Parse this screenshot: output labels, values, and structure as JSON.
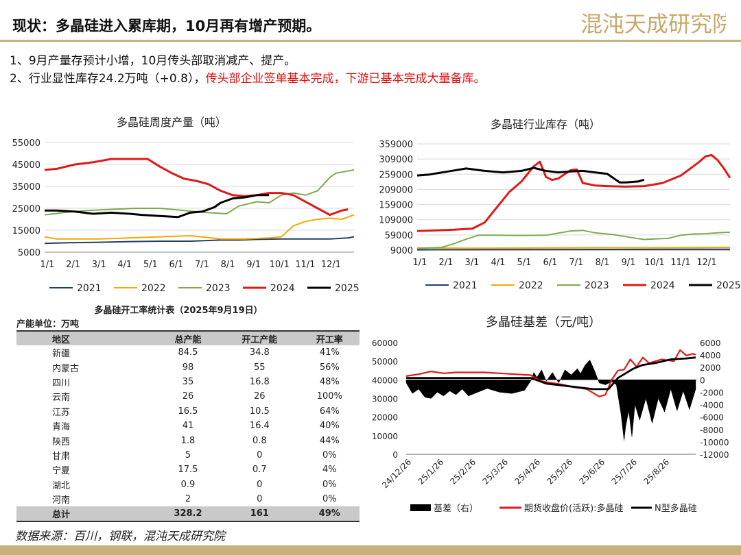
{
  "header": {
    "title": "现状：多晶硅进入累库期，10月再有增产预期。",
    "logo_text": "混沌天成研究院"
  },
  "bullets": [
    {
      "text": "1、9月产量存预计小增，10月传头部取消减产、提产。",
      "highlight": ""
    },
    {
      "text": "2、行业显性库存24.2万吨（+0.8），",
      "highlight": "传头部企业签单基本完成，下游已基本完成大量备库。"
    }
  ],
  "footer": {
    "source": "数据来源：百川，钢联，混沌天成研究院"
  },
  "colors": {
    "y2021": "#1f3f6e",
    "y2022": "#f5a700",
    "y2023": "#7aab4c",
    "y2024": "#e01818",
    "y2025": "#000000",
    "accent": "#c8b07a"
  },
  "table": {
    "title": "多晶硅开工率统计表（2025年9月19日）",
    "unit": "产能单位：万吨",
    "headers": [
      "地区",
      "总产能",
      "开工产能",
      "开工率"
    ],
    "rows": [
      [
        "新疆",
        "84.5",
        "34.8",
        "41%"
      ],
      [
        "内蒙古",
        "98",
        "55",
        "56%"
      ],
      [
        "四川",
        "35",
        "16.8",
        "48%"
      ],
      [
        "云南",
        "26",
        "26",
        "100%"
      ],
      [
        "江苏",
        "16.5",
        "10.5",
        "64%"
      ],
      [
        "青海",
        "41",
        "16.4",
        "40%"
      ],
      [
        "陕西",
        "1.8",
        "0.8",
        "44%"
      ],
      [
        "甘肃",
        "5",
        "0",
        "0%"
      ],
      [
        "宁夏",
        "17.5",
        "0.7",
        "4%"
      ],
      [
        "湖北",
        "0.9",
        "0",
        "0%"
      ],
      [
        "河南",
        "2",
        "0",
        "0%"
      ]
    ],
    "total": [
      "总计",
      "328.2",
      "161",
      "49%"
    ]
  },
  "chart_data": [
    {
      "type": "line",
      "title": "多晶硅周度产量（吨）",
      "x_ticks": [
        "1/1",
        "2/1",
        "3/1",
        "4/1",
        "5/1",
        "6/1",
        "7/1",
        "8/1",
        "9/1",
        "10/1",
        "11/1",
        "12/1"
      ],
      "ylim": [
        5000,
        55000
      ],
      "y_ticks": [
        5000,
        15000,
        25000,
        35000,
        45000,
        55000
      ],
      "x_range": [
        1,
        52
      ],
      "legend": "bottom",
      "series": [
        {
          "name": "2021",
          "color": "#1f3f6e",
          "x": [
            1,
            5,
            10,
            15,
            20,
            25,
            30,
            33,
            36,
            40,
            44,
            48,
            51,
            52
          ],
          "y": [
            9000,
            9300,
            9500,
            9800,
            10000,
            10000,
            10500,
            10500,
            10800,
            11000,
            11000,
            11000,
            11500,
            12000
          ]
        },
        {
          "name": "2022",
          "color": "#f5a700",
          "x": [
            1,
            3,
            6,
            10,
            15,
            20,
            25,
            30,
            34,
            38,
            40,
            42,
            44,
            46,
            48,
            50,
            52
          ],
          "y": [
            12000,
            11000,
            11000,
            11000,
            11500,
            12000,
            12500,
            11000,
            11000,
            11500,
            12000,
            17000,
            19000,
            20000,
            20500,
            20000,
            22000
          ]
        },
        {
          "name": "2023",
          "color": "#7aab4c",
          "x": [
            1,
            4,
            8,
            12,
            16,
            20,
            24,
            28,
            31,
            33,
            36,
            38,
            40,
            42,
            44,
            46,
            48,
            49,
            50,
            52
          ],
          "y": [
            22000,
            23000,
            24000,
            24500,
            25000,
            25000,
            24000,
            23000,
            22500,
            26000,
            28000,
            27500,
            31000,
            32000,
            31000,
            33000,
            39000,
            41000,
            41500,
            42500
          ]
        },
        {
          "name": "2024",
          "color": "#e01818",
          "x": [
            1,
            3,
            6,
            9,
            12,
            15,
            18,
            20,
            22,
            24,
            26,
            28,
            30,
            32,
            34,
            36,
            38,
            40,
            42,
            44,
            46,
            48,
            50,
            51
          ],
          "y": [
            42500,
            43000,
            45000,
            46000,
            47500,
            47500,
            47500,
            44000,
            41000,
            38500,
            37500,
            36000,
            33000,
            31000,
            30500,
            31000,
            32000,
            32000,
            31000,
            28000,
            25000,
            22000,
            24000,
            24500
          ]
        },
        {
          "name": "2025",
          "color": "#000000",
          "x": [
            1,
            3,
            6,
            9,
            12,
            15,
            17,
            20,
            23,
            25,
            27,
            29,
            30,
            32,
            34,
            36,
            38
          ],
          "y": [
            24000,
            24000,
            23500,
            22500,
            23000,
            22500,
            22000,
            21500,
            21000,
            23000,
            23500,
            25500,
            27500,
            29500,
            30000,
            31000,
            31000
          ]
        }
      ]
    },
    {
      "type": "line",
      "title": "多晶硅行业库存（吨）",
      "x_ticks": [
        "1/1",
        "2/1",
        "3/1",
        "4/1",
        "5/1",
        "6/1",
        "7/1",
        "8/1",
        "9/1",
        "10/1",
        "11/1",
        "12/1"
      ],
      "ylim": [
        9000,
        359000
      ],
      "y_ticks": [
        9000,
        59000,
        109000,
        159000,
        209000,
        259000,
        309000,
        359000
      ],
      "x_range": [
        1,
        52
      ],
      "legend": "bottom",
      "series": [
        {
          "name": "2021",
          "color": "#1f3f6e",
          "x": [
            1,
            52
          ],
          "y": [
            10000,
            12000
          ]
        },
        {
          "name": "2022",
          "color": "#f5a700",
          "x": [
            1,
            10,
            20,
            30,
            40,
            52
          ],
          "y": [
            16000,
            15000,
            16000,
            17000,
            17000,
            18000
          ]
        },
        {
          "name": "2023",
          "color": "#7aab4c",
          "x": [
            1,
            5,
            7,
            9,
            11,
            14,
            18,
            22,
            26,
            28,
            30,
            33,
            36,
            38,
            40,
            42,
            44,
            46,
            48,
            50,
            52
          ],
          "y": [
            14000,
            18000,
            30000,
            45000,
            58000,
            58000,
            57000,
            58000,
            72000,
            74000,
            66000,
            60000,
            50000,
            44000,
            46000,
            48000,
            58000,
            62000,
            63000,
            66000,
            68000
          ]
        },
        {
          "name": "2024",
          "color": "#e01818",
          "x": [
            1,
            4,
            7,
            10,
            12,
            14,
            16,
            18,
            20,
            21,
            22,
            23,
            24,
            26,
            27,
            28,
            30,
            32,
            35,
            38,
            41,
            44,
            46,
            47,
            48,
            49,
            50,
            51,
            52
          ],
          "y": [
            72000,
            74000,
            76000,
            80000,
            100000,
            150000,
            200000,
            235000,
            285000,
            300000,
            250000,
            240000,
            245000,
            272000,
            275000,
            230000,
            222000,
            220000,
            218000,
            220000,
            230000,
            255000,
            285000,
            300000,
            318000,
            322000,
            305000,
            278000,
            247000
          ]
        },
        {
          "name": "2025",
          "color": "#000000",
          "x": [
            1,
            3,
            6,
            9,
            12,
            15,
            18,
            20,
            22,
            24,
            26,
            28,
            30,
            32,
            34,
            35,
            37,
            38
          ],
          "y": [
            255000,
            258000,
            268000,
            278000,
            270000,
            265000,
            270000,
            280000,
            270000,
            265000,
            268000,
            270000,
            265000,
            260000,
            232000,
            232000,
            235000,
            241000
          ]
        }
      ]
    },
    {
      "type": "line",
      "title": "多晶硅基差（元/吨）",
      "x_ticks": [
        "24/12/26",
        "25/1/26",
        "25/2/26",
        "25/3/26",
        "25/4/26",
        "25/5/26",
        "25/6/26",
        "25/7/26",
        "25/8/26"
      ],
      "x_range": [
        0,
        9.3
      ],
      "ylim_left": [
        0,
        60000
      ],
      "y_ticks_left": [
        0,
        10000,
        20000,
        30000,
        40000,
        50000,
        60000
      ],
      "ylim_right": [
        -12000,
        6000
      ],
      "y_ticks_right": [
        -12000,
        -10000,
        -8000,
        -6000,
        -4000,
        -2000,
        0,
        2000,
        4000,
        6000
      ],
      "legend": "bottom",
      "series": [
        {
          "name": "基差（右）",
          "type": "area",
          "axis": "right",
          "color": "#000000",
          "x": [
            0,
            0.2,
            0.4,
            0.6,
            0.8,
            1.0,
            1.2,
            1.4,
            1.6,
            1.8,
            2.0,
            2.3,
            2.6,
            3.0,
            3.4,
            3.8,
            4.0,
            4.1,
            4.2,
            4.35,
            4.5,
            4.7,
            4.9,
            5.1,
            5.3,
            5.5,
            5.6,
            5.75,
            5.9,
            6.05,
            6.2,
            6.4,
            6.6,
            6.75,
            6.9,
            7.0,
            7.05,
            7.15,
            7.25,
            7.35,
            7.5,
            7.7,
            7.9,
            8.1,
            8.3,
            8.5,
            8.7,
            8.9,
            9.1,
            9.3
          ],
          "y": [
            -500,
            -2200,
            -1500,
            -2800,
            -3000,
            -2000,
            -2600,
            -1800,
            -2400,
            -1500,
            -2600,
            -2000,
            -1400,
            -2000,
            -2200,
            -1700,
            -200,
            1200,
            400,
            1600,
            -200,
            1200,
            -500,
            1600,
            800,
            1800,
            1000,
            2400,
            3200,
            1500,
            -500,
            -800,
            -300,
            -800,
            -5500,
            -9800,
            -7500,
            -5000,
            -9200,
            -4000,
            -6500,
            -3000,
            -7000,
            -3000,
            -5200,
            -1500,
            -5000,
            -1800,
            -4800,
            -1500
          ]
        },
        {
          "name": "期货收盘价(活跃):多晶硅",
          "type": "line",
          "axis": "left",
          "color": "#e01818",
          "x": [
            0,
            0.4,
            0.8,
            1.2,
            1.6,
            2.0,
            2.5,
            3.0,
            3.5,
            4.0,
            4.3,
            4.6,
            5.0,
            5.4,
            5.8,
            6.0,
            6.2,
            6.4,
            6.6,
            6.8,
            7.0,
            7.2,
            7.4,
            7.6,
            7.8,
            8.0,
            8.2,
            8.4,
            8.6,
            8.8,
            9.0,
            9.2,
            9.3
          ],
          "y": [
            42000,
            43000,
            44500,
            43500,
            44000,
            44000,
            44000,
            43500,
            43000,
            42500,
            39500,
            38500,
            37500,
            36000,
            35000,
            33000,
            31000,
            32000,
            40000,
            45000,
            45500,
            51000,
            47000,
            52000,
            49000,
            50000,
            51000,
            50500,
            50000,
            56000,
            53000,
            54000,
            53500
          ]
        },
        {
          "name": "N型多晶硅",
          "type": "line",
          "axis": "left",
          "color": "#000000",
          "x": [
            0,
            1,
            2,
            3,
            4,
            4.5,
            5,
            5.5,
            6,
            6.5,
            6.8,
            7.0,
            7.3,
            7.6,
            8.0,
            8.5,
            9.0,
            9.3
          ],
          "y": [
            41000,
            41000,
            41000,
            41000,
            41000,
            38000,
            37000,
            36000,
            35000,
            35000,
            41000,
            43000,
            46000,
            48000,
            49000,
            51000,
            51500,
            52000
          ]
        }
      ]
    }
  ]
}
